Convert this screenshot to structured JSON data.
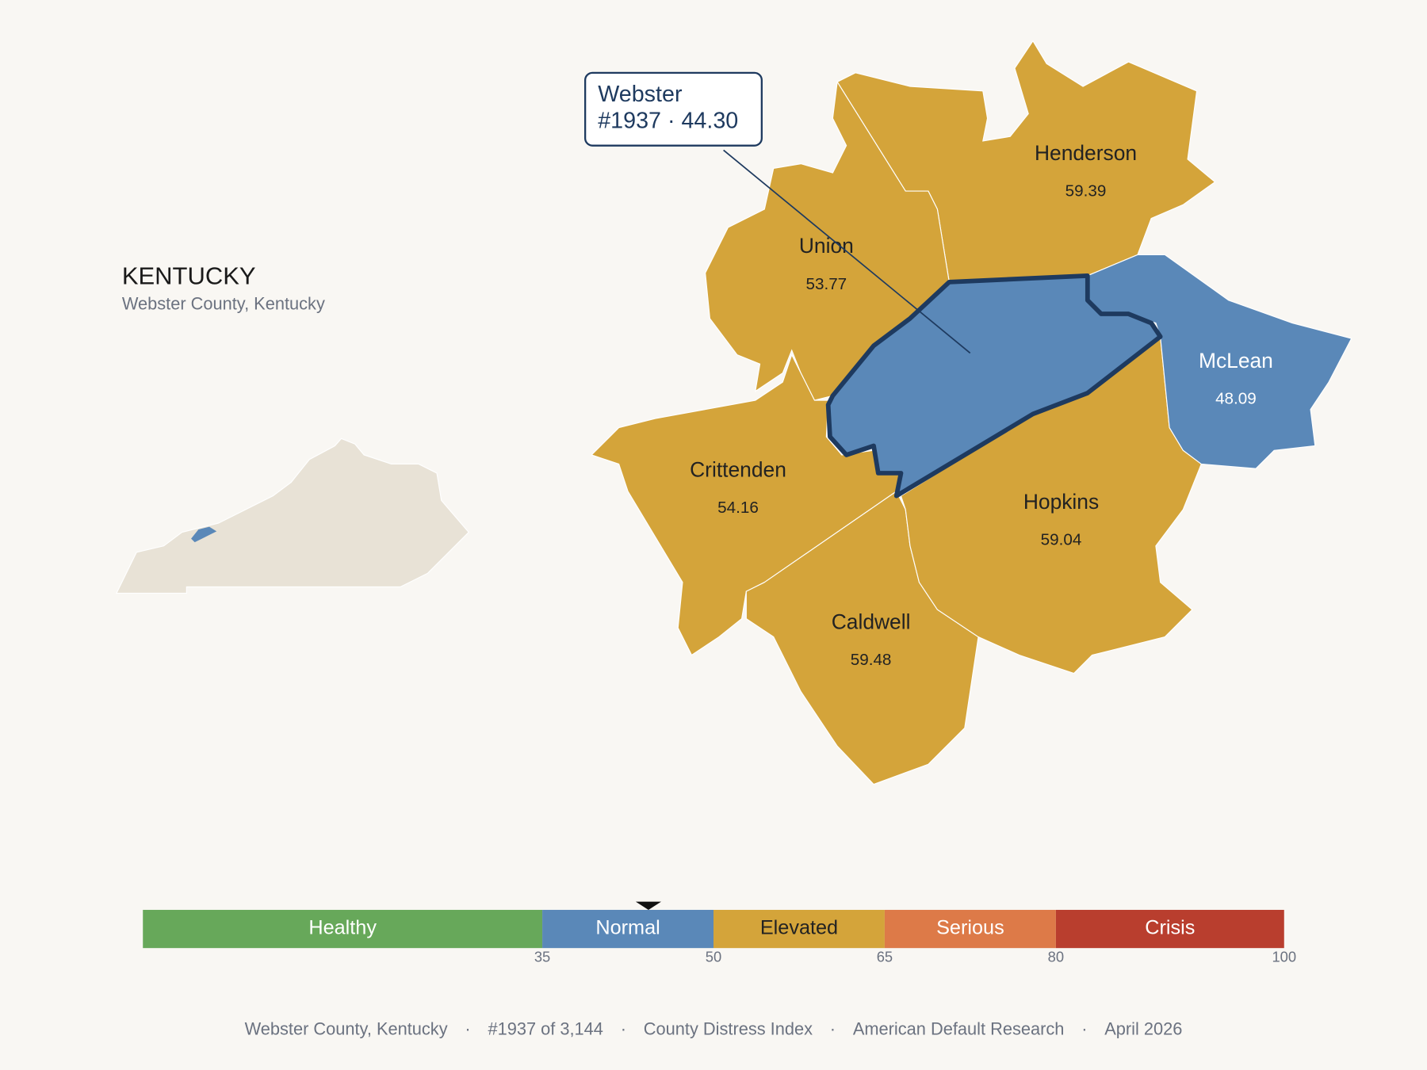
{
  "state": {
    "title": "KENTUCKY",
    "subtitle": "Webster County, Kentucky"
  },
  "callout": {
    "name": "Webster",
    "label": "#1937 · 44.30",
    "score": 44.3
  },
  "counties": [
    {
      "name": "Webster",
      "color": "#5a88b8"
    },
    {
      "name": "Henderson",
      "value": 59.39,
      "color": "#d4a43a",
      "text_color": "#222222"
    },
    {
      "name": "Union",
      "value": 53.77,
      "color": "#d4a43a",
      "text_color": "#222222"
    },
    {
      "name": "Crittenden",
      "value": 54.16,
      "color": "#d4a43a",
      "text_color": "#222222"
    },
    {
      "name": "Hopkins",
      "value": 59.04,
      "color": "#d4a43a",
      "text_color": "#222222"
    },
    {
      "name": "Caldwell",
      "value": 59.48,
      "color": "#d4a43a",
      "text_color": "#222222"
    },
    {
      "name": "McLean",
      "value": 48.09,
      "color": "#5a88b8",
      "text_color": "#ffffff"
    }
  ],
  "scale": {
    "min": 0,
    "max": 100,
    "ticks": [
      35,
      50,
      65,
      80,
      100
    ],
    "bands": [
      {
        "label": "Healthy",
        "color": "#67a85a",
        "text_color": "#ffffff"
      },
      {
        "label": "Normal",
        "color": "#5a88b8",
        "text_color": "#ffffff"
      },
      {
        "label": "Elevated",
        "color": "#d4a43a",
        "text_color": "#222222"
      },
      {
        "label": "Serious",
        "color": "#dd7a48",
        "text_color": "#ffffff"
      },
      {
        "label": "Crisis",
        "color": "#b93e2e",
        "text_color": "#ffffff"
      }
    ]
  },
  "footer": {
    "separator": "·",
    "parts": [
      "Webster County, Kentucky",
      "#1937 of 3,144",
      "County Distress Index",
      "American Default Research",
      "April 2026"
    ]
  }
}
